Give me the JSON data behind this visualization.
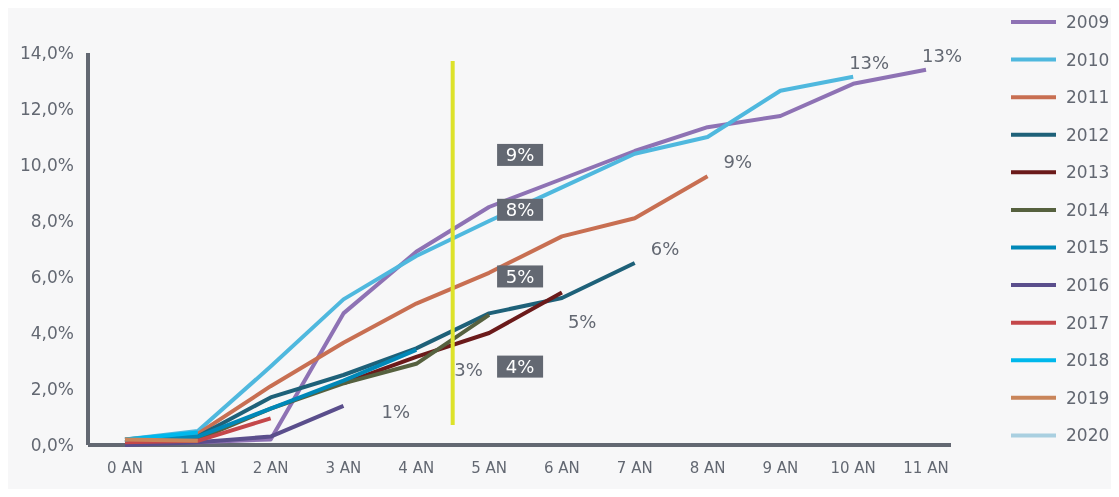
{
  "chart_data": {
    "type": "line",
    "categories": [
      "0 AN",
      "1 AN",
      "2 AN",
      "3 AN",
      "4 AN",
      "5 AN",
      "6 AN",
      "7 AN",
      "8 AN",
      "9 AN",
      "10 AN",
      "11 AN"
    ],
    "series": [
      {
        "name": "2009",
        "color": "#8e72b4",
        "values": [
          0.1,
          0.1,
          0.2,
          4.7,
          6.9,
          8.5,
          9.5,
          10.5,
          11.35,
          11.75,
          12.9,
          13.4
        ]
      },
      {
        "name": "2010",
        "color": "#4fb8de",
        "values": [
          0.2,
          0.5,
          2.8,
          5.2,
          6.75,
          8.0,
          9.2,
          10.4,
          11.0,
          12.65,
          13.15,
          null
        ]
      },
      {
        "name": "2011",
        "color": "#c86f52",
        "values": [
          0.2,
          0.4,
          2.1,
          3.65,
          5.05,
          6.15,
          7.45,
          8.1,
          9.6,
          null,
          null,
          null
        ]
      },
      {
        "name": "2012",
        "color": "#1e6179",
        "values": [
          0.1,
          0.3,
          1.7,
          2.5,
          3.45,
          4.7,
          5.25,
          6.5,
          null,
          null,
          null,
          null
        ]
      },
      {
        "name": "2013",
        "color": "#6b1a1a",
        "values": [
          null,
          null,
          null,
          2.2,
          3.15,
          4.0,
          5.45,
          null,
          null,
          null,
          null,
          null
        ]
      },
      {
        "name": "2014",
        "color": "#56613f",
        "values": [
          0.1,
          0.2,
          1.3,
          2.2,
          2.9,
          4.65,
          null,
          null,
          null,
          null,
          null,
          null
        ]
      },
      {
        "name": "2015",
        "color": "#0088b8",
        "values": [
          0.1,
          0.3,
          1.3,
          2.3,
          3.4,
          null,
          null,
          null,
          null,
          null,
          null,
          null
        ]
      },
      {
        "name": "2016",
        "color": "#5a4e8c",
        "values": [
          0.0,
          0.1,
          0.3,
          1.4,
          null,
          null,
          null,
          null,
          null,
          null,
          null,
          null
        ]
      },
      {
        "name": "2017",
        "color": "#c4474a",
        "values": [
          0.1,
          0.15,
          0.95,
          null,
          null,
          null,
          null,
          null,
          null,
          null,
          null,
          null
        ]
      },
      {
        "name": "2018",
        "color": "#00b8ec",
        "values": [
          0.2,
          0.45,
          null,
          null,
          null,
          null,
          null,
          null,
          null,
          null,
          null,
          null
        ]
      },
      {
        "name": "2019",
        "color": "#c9855a",
        "values": [
          0.2,
          0.15,
          null,
          null,
          null,
          null,
          null,
          null,
          null,
          null,
          null,
          null
        ]
      },
      {
        "name": "2020",
        "color": "#a9cfe0",
        "values": [
          null,
          null,
          null,
          null,
          null,
          null,
          null,
          null,
          null,
          null,
          null,
          null
        ]
      }
    ],
    "ylim": [
      0,
      14
    ],
    "yticks": [
      {
        "value": 0,
        "label": "0,0%"
      },
      {
        "value": 2,
        "label": "2,0%"
      },
      {
        "value": 4,
        "label": "4,0%"
      },
      {
        "value": 6,
        "label": "6,0%"
      },
      {
        "value": 8,
        "label": "8,0%"
      },
      {
        "value": 10,
        "label": "10,0%"
      },
      {
        "value": 12,
        "label": "12,0%"
      },
      {
        "value": 14,
        "label": "14,0%"
      }
    ],
    "annotations": [
      {
        "text": "13%",
        "x": "10 AN",
        "y": 13.15
      },
      {
        "text": "13%",
        "x": "11 AN",
        "y": 13.4
      },
      {
        "text": "9%",
        "x": "8 AN",
        "y": 9.6
      },
      {
        "text": "6%",
        "x": "7 AN",
        "y": 6.5
      },
      {
        "text": "5%",
        "x": "6 AN",
        "y": 5.25
      },
      {
        "text": "3%",
        "x": "4 AN",
        "y": 2.9
      },
      {
        "text": "1%",
        "x": "3 AN",
        "y": 1.4
      },
      "9%",
      "8%",
      "5%",
      "4%"
    ],
    "grid": false,
    "legend": "right",
    "marker": "none",
    "line_style": "solid"
  }
}
